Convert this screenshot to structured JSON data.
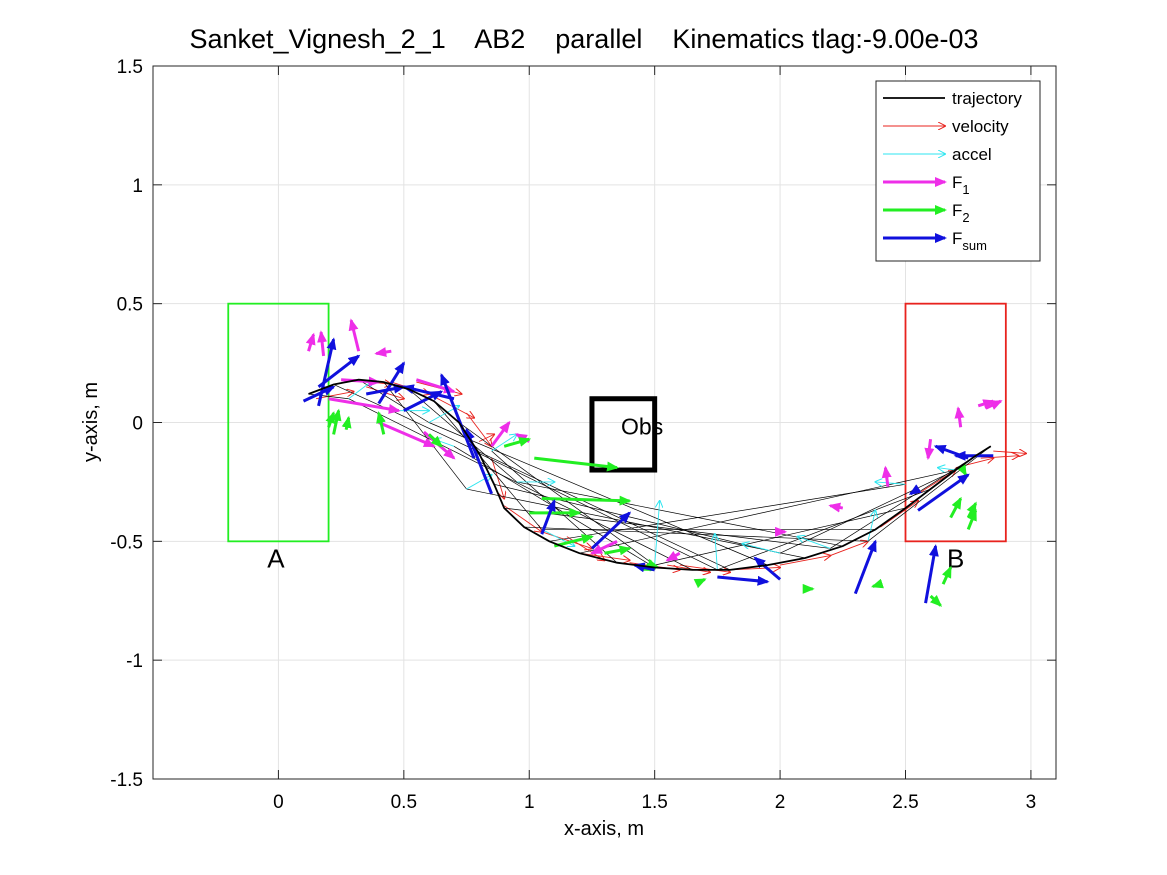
{
  "chart_data": {
    "type": "line",
    "title": "Sanket_Vignesh_2_1    AB2    parallel    Kinematics tlag:-9.00e-03",
    "xlabel": "x-axis, m",
    "ylabel": "y-axis, m",
    "xlim": [
      -0.5,
      3.1
    ],
    "ylim": [
      -1.5,
      1.5
    ],
    "xticks": [
      0,
      0.5,
      1,
      1.5,
      2,
      2.5,
      3
    ],
    "xtick_labels": [
      "0",
      "0.5",
      "1",
      "1.5",
      "2",
      "2.5",
      "3"
    ],
    "yticks": [
      -1.5,
      -1,
      -0.5,
      0,
      0.5,
      1,
      1.5
    ],
    "ytick_labels": [
      "-1.5",
      "-1",
      "-0.5",
      "0",
      "0.5",
      "1",
      "1.5"
    ],
    "grid": true,
    "legend_position": "top-right",
    "legend": [
      {
        "label": "trajectory",
        "sub": "",
        "color": "#000000",
        "kind": "line"
      },
      {
        "label": "velocity",
        "sub": "",
        "color": "#e8231e",
        "kind": "thin-arrow"
      },
      {
        "label": "accel",
        "sub": "",
        "color": "#2ee6f0",
        "kind": "thin-arrow"
      },
      {
        "label": "F",
        "sub": "1",
        "color": "#ee2ee8",
        "kind": "thick-arrow"
      },
      {
        "label": "F",
        "sub": "2",
        "color": "#22ee22",
        "kind": "thick-arrow"
      },
      {
        "label": "F",
        "sub": "sum",
        "color": "#1010dd",
        "kind": "thick-arrow"
      }
    ],
    "regions": [
      {
        "label": "A",
        "x": [
          -0.2,
          0.2
        ],
        "y": [
          -0.5,
          0.5
        ],
        "color": "#22ee22",
        "label_at": [
          -0.01,
          -0.61
        ]
      },
      {
        "label": "B",
        "x": [
          2.5,
          2.9
        ],
        "y": [
          -0.5,
          0.5
        ],
        "color": "#e8231e",
        "label_at": [
          2.7,
          -0.61
        ]
      }
    ],
    "obstacle": {
      "label": "Obs",
      "x": [
        1.25,
        1.5
      ],
      "y": [
        -0.2,
        0.1
      ],
      "color": "#000000",
      "label_at": [
        1.45,
        -0.05
      ]
    },
    "trajectory": {
      "x": [
        0.12,
        0.22,
        0.32,
        0.42,
        0.52,
        0.62,
        0.72,
        0.8,
        0.86,
        0.9,
        0.98,
        1.08,
        1.2,
        1.35,
        1.5,
        1.65,
        1.8,
        1.95,
        2.1,
        2.25,
        2.38,
        2.5,
        2.6,
        2.7,
        2.78,
        2.84
      ],
      "y": [
        0.12,
        0.16,
        0.18,
        0.17,
        0.14,
        0.09,
        0.0,
        -0.13,
        -0.26,
        -0.36,
        -0.44,
        -0.5,
        -0.55,
        -0.59,
        -0.61,
        -0.62,
        -0.62,
        -0.6,
        -0.57,
        -0.52,
        -0.45,
        -0.36,
        -0.28,
        -0.2,
        -0.14,
        -0.1
      ]
    },
    "velocity_arrows": [
      [
        0.15,
        0.1,
        0.3,
        0.13
      ],
      [
        0.3,
        0.18,
        0.45,
        0.16
      ],
      [
        0.45,
        0.17,
        0.6,
        0.12
      ],
      [
        0.6,
        0.12,
        0.78,
        0.02
      ],
      [
        0.75,
        0.04,
        0.85,
        -0.1
      ],
      [
        0.85,
        -0.15,
        0.9,
        -0.32
      ],
      [
        0.9,
        -0.35,
        1.05,
        -0.46
      ],
      [
        1.05,
        -0.46,
        1.25,
        -0.53
      ],
      [
        1.2,
        -0.55,
        1.4,
        -0.58
      ],
      [
        1.4,
        -0.59,
        1.6,
        -0.62
      ],
      [
        1.6,
        -0.6,
        1.8,
        -0.63
      ],
      [
        1.8,
        -0.62,
        2.0,
        -0.61
      ],
      [
        2.0,
        -0.6,
        2.2,
        -0.56
      ],
      [
        2.2,
        -0.56,
        2.35,
        -0.5
      ],
      [
        2.4,
        -0.44,
        2.55,
        -0.33
      ],
      [
        2.55,
        -0.3,
        2.7,
        -0.2
      ],
      [
        2.7,
        -0.19,
        2.85,
        -0.15
      ],
      [
        2.8,
        -0.15,
        2.95,
        -0.14
      ],
      [
        0.55,
        0.17,
        0.73,
        0.12
      ],
      [
        0.35,
        0.15,
        0.5,
        0.1
      ],
      [
        1.15,
        -0.48,
        1.3,
        -0.58
      ],
      [
        2.85,
        -0.12,
        2.98,
        -0.13
      ],
      [
        0.8,
        -0.08,
        0.86,
        -0.05
      ],
      [
        1.55,
        -0.6,
        1.72,
        -0.63
      ]
    ],
    "accel_arrows": [
      [
        0.28,
        0.1,
        0.38,
        0.18
      ],
      [
        0.45,
        0.05,
        0.6,
        0.05
      ],
      [
        0.6,
        0.0,
        0.72,
        0.07
      ],
      [
        0.75,
        -0.28,
        0.85,
        -0.22
      ],
      [
        0.95,
        -0.25,
        1.1,
        -0.25
      ],
      [
        1.05,
        -0.45,
        1.18,
        -0.52
      ],
      [
        1.5,
        -0.6,
        1.52,
        -0.33
      ],
      [
        1.75,
        -0.62,
        1.74,
        -0.47
      ],
      [
        2.0,
        -0.55,
        1.85,
        -0.51
      ],
      [
        2.2,
        -0.53,
        2.07,
        -0.48
      ],
      [
        2.35,
        -0.5,
        2.38,
        -0.37
      ],
      [
        2.5,
        -0.26,
        2.38,
        -0.25
      ],
      [
        2.7,
        -0.2,
        2.63,
        -0.19
      ],
      [
        0.85,
        -0.12,
        0.95,
        -0.05
      ],
      [
        0.7,
        -0.1,
        0.62,
        -0.07
      ]
    ],
    "f1_arrows": [
      [
        0.12,
        0.3,
        0.14,
        0.37
      ],
      [
        0.18,
        0.28,
        0.17,
        0.38
      ],
      [
        0.32,
        0.3,
        0.29,
        0.43
      ],
      [
        0.45,
        0.3,
        0.39,
        0.29
      ],
      [
        0.85,
        -0.1,
        0.92,
        0.0
      ],
      [
        0.58,
        -0.04,
        0.7,
        -0.15
      ],
      [
        0.25,
        0.18,
        0.4,
        0.17
      ],
      [
        0.2,
        0.1,
        0.48,
        0.05
      ],
      [
        0.4,
        0.0,
        0.62,
        -0.1
      ],
      [
        0.55,
        0.18,
        0.7,
        0.13
      ],
      [
        1.35,
        -0.5,
        1.25,
        -0.55
      ],
      [
        1.6,
        -0.55,
        1.55,
        -0.58
      ],
      [
        1.98,
        -0.46,
        2.02,
        -0.46
      ],
      [
        2.25,
        -0.36,
        2.2,
        -0.35
      ],
      [
        2.43,
        -0.27,
        2.42,
        -0.19
      ],
      [
        2.6,
        -0.07,
        2.59,
        -0.15
      ],
      [
        2.79,
        0.07,
        2.85,
        0.09
      ],
      [
        2.82,
        0.06,
        2.88,
        0.09
      ],
      [
        2.72,
        -0.02,
        2.71,
        0.06
      ],
      [
        1.0,
        -0.08,
        0.95,
        -0.05
      ]
    ],
    "f2_arrows": [
      [
        1.02,
        -0.15,
        1.35,
        -0.19
      ],
      [
        1.05,
        -0.32,
        1.4,
        -0.33
      ],
      [
        1.0,
        -0.38,
        1.2,
        -0.38
      ],
      [
        1.1,
        -0.52,
        1.25,
        -0.48
      ],
      [
        1.3,
        -0.55,
        1.4,
        -0.53
      ],
      [
        1.5,
        -0.6,
        1.45,
        -0.62
      ],
      [
        0.9,
        -0.1,
        1.0,
        -0.07
      ],
      [
        0.6,
        -0.05,
        0.65,
        -0.1
      ],
      [
        0.22,
        -0.05,
        0.24,
        0.05
      ],
      [
        0.27,
        -0.03,
        0.28,
        0.02
      ],
      [
        0.2,
        -0.02,
        0.22,
        0.04
      ],
      [
        0.42,
        -0.05,
        0.4,
        0.04
      ],
      [
        1.5,
        -0.62,
        1.48,
        -0.58
      ],
      [
        2.1,
        -0.7,
        2.13,
        -0.7
      ],
      [
        1.68,
        -0.67,
        1.7,
        -0.66
      ],
      [
        2.4,
        -0.68,
        2.37,
        -0.69
      ],
      [
        2.6,
        -0.73,
        2.64,
        -0.77
      ],
      [
        2.65,
        -0.68,
        2.68,
        -0.61
      ],
      [
        2.75,
        -0.45,
        2.78,
        -0.37
      ],
      [
        2.75,
        -0.4,
        2.78,
        -0.34
      ],
      [
        2.68,
        -0.4,
        2.72,
        -0.32
      ],
      [
        2.72,
        -0.18,
        2.74,
        -0.22
      ]
    ],
    "fsum_arrows": [
      [
        0.1,
        0.09,
        0.22,
        0.15
      ],
      [
        0.16,
        0.15,
        0.32,
        0.28
      ],
      [
        0.16,
        0.07,
        0.22,
        0.35
      ],
      [
        0.4,
        0.08,
        0.5,
        0.25
      ],
      [
        0.35,
        0.12,
        0.5,
        0.15
      ],
      [
        0.5,
        0.05,
        0.65,
        0.13
      ],
      [
        0.78,
        -0.15,
        0.65,
        0.2
      ],
      [
        0.85,
        -0.3,
        0.75,
        -0.03
      ],
      [
        1.05,
        -0.47,
        1.1,
        -0.33
      ],
      [
        1.25,
        -0.53,
        1.4,
        -0.38
      ],
      [
        1.5,
        -0.62,
        1.42,
        -0.6
      ],
      [
        1.75,
        -0.65,
        1.95,
        -0.67
      ],
      [
        2.0,
        -0.66,
        1.9,
        -0.57
      ],
      [
        2.3,
        -0.72,
        2.38,
        -0.5
      ],
      [
        2.58,
        -0.76,
        2.62,
        -0.52
      ],
      [
        2.55,
        -0.37,
        2.75,
        -0.22
      ],
      [
        2.75,
        -0.15,
        2.62,
        -0.1
      ],
      [
        2.85,
        -0.14,
        2.7,
        -0.14
      ],
      [
        2.55,
        -0.28,
        2.52,
        -0.3
      ],
      [
        0.7,
        0.1,
        0.5,
        0.15
      ]
    ]
  }
}
